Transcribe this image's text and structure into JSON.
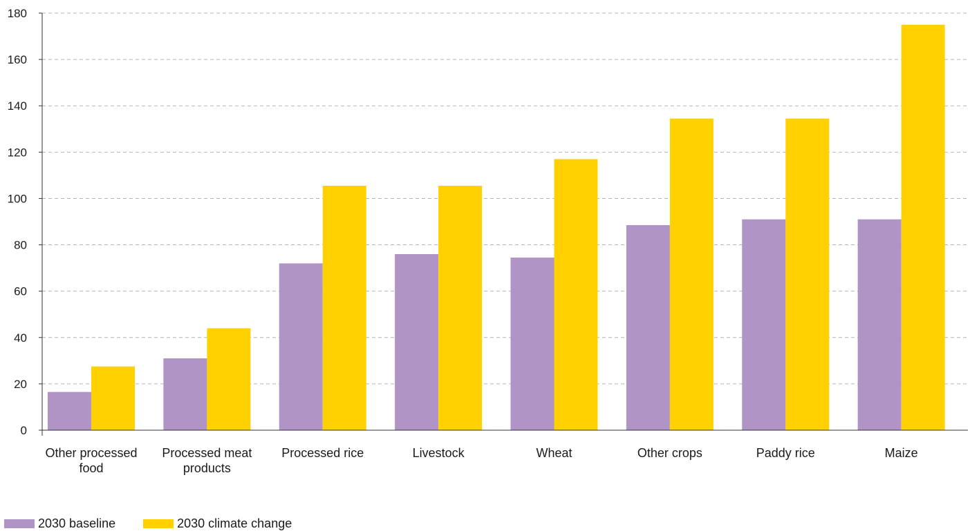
{
  "chart_data": {
    "type": "bar",
    "categories": [
      [
        "Other processed",
        "food"
      ],
      [
        "Processed meat",
        "products"
      ],
      [
        "Processed rice"
      ],
      [
        "Livestock"
      ],
      [
        "Wheat"
      ],
      [
        "Other crops"
      ],
      [
        "Paddy rice"
      ],
      [
        "Maize"
      ]
    ],
    "series": [
      {
        "name": "2030 baseline",
        "color": "#b094c6",
        "values": [
          16.5,
          31,
          72,
          76,
          74.5,
          88.5,
          91,
          91
        ]
      },
      {
        "name": "2030 climate change",
        "color": "#ffd100",
        "values": [
          27.5,
          44,
          105.5,
          105.5,
          117,
          134.5,
          134.5,
          175
        ]
      }
    ],
    "ylim": [
      0,
      180
    ],
    "yticks": [
      0,
      20,
      40,
      60,
      80,
      100,
      120,
      140,
      160,
      180
    ],
    "grid": true,
    "legend_position": "bottom-left",
    "title": "",
    "xlabel": "",
    "ylabel": ""
  }
}
